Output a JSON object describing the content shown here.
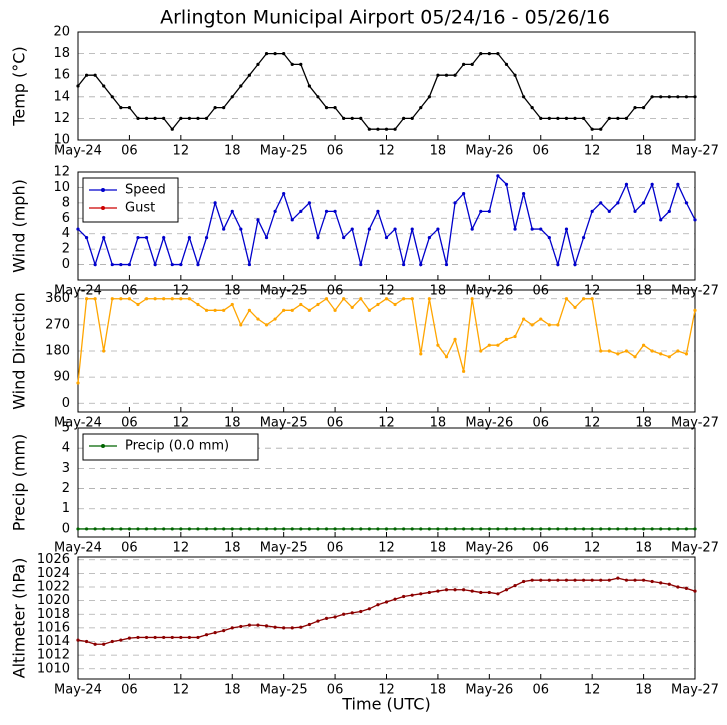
{
  "title": "Arlington Municipal Airport 05/24/16 - 05/26/16",
  "chart_data": [
    {
      "type": "line",
      "ylabel": "Temp (°C)",
      "x": [
        0,
        1,
        2,
        3,
        4,
        5,
        6,
        7,
        8,
        9,
        10,
        11,
        12,
        13,
        14,
        15,
        16,
        17,
        18,
        19,
        20,
        21,
        22,
        23,
        24,
        25,
        26,
        27,
        28,
        29,
        30,
        31,
        32,
        33,
        34,
        35,
        36,
        37,
        38,
        39,
        40,
        41,
        42,
        43,
        44,
        45,
        46,
        47,
        48,
        49,
        50,
        51,
        52,
        53,
        54,
        55,
        56,
        57,
        58,
        59,
        60,
        61,
        62,
        63,
        64,
        65,
        66,
        67,
        68,
        69,
        70,
        71,
        72
      ],
      "xlim": [
        0,
        72
      ],
      "xticks": [
        {
          "value": 0,
          "label": "May-24"
        },
        {
          "value": 6,
          "label": "06"
        },
        {
          "value": 12,
          "label": "12"
        },
        {
          "value": 18,
          "label": "18"
        },
        {
          "value": 24,
          "label": "May-25"
        },
        {
          "value": 30,
          "label": "06"
        },
        {
          "value": 36,
          "label": "12"
        },
        {
          "value": 42,
          "label": "18"
        },
        {
          "value": 48,
          "label": "May-26"
        },
        {
          "value": 54,
          "label": "06"
        },
        {
          "value": 60,
          "label": "12"
        },
        {
          "value": 66,
          "label": "18"
        },
        {
          "value": 72,
          "label": "May-27"
        }
      ],
      "ylim": [
        10,
        20
      ],
      "yticks": [
        10,
        12,
        14,
        16,
        18,
        20
      ],
      "grid": true,
      "series": [
        {
          "name": "Temp",
          "color": "#000000",
          "values": [
            15,
            16,
            16,
            15,
            14,
            13,
            13,
            12,
            12,
            12,
            12,
            11,
            12,
            12,
            12,
            12,
            13,
            13,
            14,
            15,
            16,
            17,
            18,
            18,
            18,
            17,
            17,
            15,
            14,
            13,
            13,
            12,
            12,
            12,
            11,
            11,
            11,
            11,
            12,
            12,
            13,
            14,
            16,
            16,
            16,
            17,
            17,
            18,
            18,
            18,
            17,
            16,
            14,
            13,
            12,
            12,
            12,
            12,
            12,
            12,
            11,
            11,
            12,
            12,
            12,
            13,
            13,
            14,
            14,
            14,
            14,
            14,
            14
          ]
        }
      ]
    },
    {
      "type": "line",
      "ylabel": "Wind (mph)",
      "legend": "upper left",
      "x": [
        0,
        1,
        2,
        3,
        4,
        5,
        6,
        7,
        8,
        9,
        10,
        11,
        12,
        13,
        14,
        15,
        16,
        17,
        18,
        19,
        20,
        21,
        22,
        23,
        24,
        25,
        26,
        27,
        28,
        29,
        30,
        31,
        32,
        33,
        34,
        35,
        36,
        37,
        38,
        39,
        40,
        41,
        42,
        43,
        44,
        45,
        46,
        47,
        48,
        49,
        50,
        51,
        52,
        53,
        54,
        55,
        56,
        57,
        58,
        59,
        60,
        61,
        62,
        63,
        64,
        65,
        66,
        67,
        68,
        69,
        70,
        71,
        72
      ],
      "xlim": [
        0,
        72
      ],
      "xticks": [
        {
          "value": 0,
          "label": "May-24"
        },
        {
          "value": 6,
          "label": "06"
        },
        {
          "value": 12,
          "label": "12"
        },
        {
          "value": 18,
          "label": "18"
        },
        {
          "value": 24,
          "label": "May-25"
        },
        {
          "value": 30,
          "label": "06"
        },
        {
          "value": 36,
          "label": "12"
        },
        {
          "value": 42,
          "label": "18"
        },
        {
          "value": 48,
          "label": "May-26"
        },
        {
          "value": 54,
          "label": "06"
        },
        {
          "value": 60,
          "label": "12"
        },
        {
          "value": 66,
          "label": "18"
        },
        {
          "value": 72,
          "label": "May-27"
        }
      ],
      "ylim": [
        -2,
        12
      ],
      "yticks": [
        0,
        2,
        4,
        6,
        8,
        10,
        12
      ],
      "grid": true,
      "series": [
        {
          "name": "Speed",
          "color": "#0000cc",
          "values": [
            4.6,
            3.5,
            0,
            3.5,
            0,
            0,
            0,
            3.5,
            3.5,
            0,
            3.5,
            0,
            0,
            3.5,
            0,
            3.5,
            8,
            4.6,
            6.9,
            4.6,
            0,
            5.8,
            3.5,
            6.9,
            9.2,
            5.8,
            6.9,
            8,
            3.5,
            6.9,
            6.9,
            3.5,
            4.6,
            0,
            4.6,
            6.9,
            3.5,
            4.6,
            0,
            4.6,
            0,
            3.5,
            4.6,
            0,
            8,
            9.2,
            4.6,
            6.9,
            6.9,
            11.5,
            10.4,
            4.6,
            9.2,
            4.6,
            4.6,
            3.5,
            0,
            4.6,
            0,
            3.5,
            6.9,
            8,
            6.9,
            8,
            10.4,
            6.9,
            8,
            10.4,
            5.8,
            6.9,
            10.4,
            8,
            5.8
          ]
        },
        {
          "name": "Gust",
          "color": "#cc0000",
          "values": [
            null,
            null,
            null,
            null,
            null,
            null,
            null,
            null,
            null,
            null,
            null,
            null,
            null,
            null,
            null,
            null,
            null,
            null,
            null,
            null,
            null,
            null,
            null,
            null,
            null,
            null,
            null,
            null,
            null,
            null,
            null,
            null,
            null,
            null,
            null,
            null,
            null,
            null,
            null,
            null,
            null,
            null,
            null,
            null,
            null,
            null,
            null,
            null,
            null,
            null,
            null,
            null,
            null,
            null,
            null,
            null,
            null,
            null,
            null,
            null,
            null,
            null,
            null,
            null,
            null,
            null,
            null,
            null,
            null,
            null,
            null,
            null,
            null
          ]
        }
      ]
    },
    {
      "type": "line",
      "ylabel": "Wind Direction",
      "x": [
        0,
        1,
        2,
        3,
        4,
        5,
        6,
        7,
        8,
        9,
        10,
        11,
        12,
        13,
        14,
        15,
        16,
        17,
        18,
        19,
        20,
        21,
        22,
        23,
        24,
        25,
        26,
        27,
        28,
        29,
        30,
        31,
        32,
        33,
        34,
        35,
        36,
        37,
        38,
        39,
        40,
        41,
        42,
        43,
        44,
        45,
        46,
        47,
        48,
        49,
        50,
        51,
        52,
        53,
        54,
        55,
        56,
        57,
        58,
        59,
        60,
        61,
        62,
        63,
        64,
        65,
        66,
        67,
        68,
        69,
        70,
        71,
        72
      ],
      "xlim": [
        0,
        72
      ],
      "xticks": [
        {
          "value": 0,
          "label": "May-24"
        },
        {
          "value": 6,
          "label": "06"
        },
        {
          "value": 12,
          "label": "12"
        },
        {
          "value": 18,
          "label": "18"
        },
        {
          "value": 24,
          "label": "May-25"
        },
        {
          "value": 30,
          "label": "06"
        },
        {
          "value": 36,
          "label": "12"
        },
        {
          "value": 42,
          "label": "18"
        },
        {
          "value": 48,
          "label": "May-26"
        },
        {
          "value": 54,
          "label": "06"
        },
        {
          "value": 60,
          "label": "12"
        },
        {
          "value": 66,
          "label": "18"
        },
        {
          "value": 72,
          "label": "May-27"
        }
      ],
      "ylim": [
        -30,
        390
      ],
      "yticks": [
        0,
        90,
        180,
        270,
        360
      ],
      "grid": true,
      "series": [
        {
          "name": "Wind Direction",
          "color": "#ffa500",
          "values": [
            70,
            360,
            360,
            180,
            360,
            360,
            360,
            340,
            360,
            360,
            360,
            360,
            360,
            360,
            340,
            320,
            320,
            320,
            340,
            270,
            320,
            290,
            270,
            290,
            320,
            320,
            340,
            320,
            340,
            360,
            320,
            360,
            330,
            360,
            320,
            340,
            360,
            340,
            360,
            360,
            170,
            360,
            200,
            160,
            220,
            110,
            360,
            180,
            200,
            200,
            220,
            230,
            290,
            270,
            290,
            270,
            270,
            360,
            330,
            360,
            360,
            180,
            180,
            170,
            180,
            160,
            200,
            180,
            170,
            160,
            180,
            170,
            320
          ]
        }
      ]
    },
    {
      "type": "line",
      "ylabel": "Precip (mm)",
      "legend": "upper left",
      "x": [
        0,
        1,
        2,
        3,
        4,
        5,
        6,
        7,
        8,
        9,
        10,
        11,
        12,
        13,
        14,
        15,
        16,
        17,
        18,
        19,
        20,
        21,
        22,
        23,
        24,
        25,
        26,
        27,
        28,
        29,
        30,
        31,
        32,
        33,
        34,
        35,
        36,
        37,
        38,
        39,
        40,
        41,
        42,
        43,
        44,
        45,
        46,
        47,
        48,
        49,
        50,
        51,
        52,
        53,
        54,
        55,
        56,
        57,
        58,
        59,
        60,
        61,
        62,
        63,
        64,
        65,
        66,
        67,
        68,
        69,
        70,
        71,
        72
      ],
      "xlim": [
        0,
        72
      ],
      "xticks": [
        {
          "value": 0,
          "label": "May-24"
        },
        {
          "value": 6,
          "label": "06"
        },
        {
          "value": 12,
          "label": "12"
        },
        {
          "value": 18,
          "label": "18"
        },
        {
          "value": 24,
          "label": "May-25"
        },
        {
          "value": 30,
          "label": "06"
        },
        {
          "value": 36,
          "label": "12"
        },
        {
          "value": 42,
          "label": "18"
        },
        {
          "value": 48,
          "label": "May-26"
        },
        {
          "value": 54,
          "label": "06"
        },
        {
          "value": 60,
          "label": "12"
        },
        {
          "value": 66,
          "label": "18"
        },
        {
          "value": 72,
          "label": "May-27"
        }
      ],
      "ylim": [
        -0.4,
        5
      ],
      "yticks": [
        0,
        1,
        2,
        3,
        4,
        5
      ],
      "grid": true,
      "series": [
        {
          "name": "Precip (0.0 mm)",
          "color": "#006400",
          "values": [
            0,
            0,
            0,
            0,
            0,
            0,
            0,
            0,
            0,
            0,
            0,
            0,
            0,
            0,
            0,
            0,
            0,
            0,
            0,
            0,
            0,
            0,
            0,
            0,
            0,
            0,
            0,
            0,
            0,
            0,
            0,
            0,
            0,
            0,
            0,
            0,
            0,
            0,
            0,
            0,
            0,
            0,
            0,
            0,
            0,
            0,
            0,
            0,
            0,
            0,
            0,
            0,
            0,
            0,
            0,
            0,
            0,
            0,
            0,
            0,
            0,
            0,
            0,
            0,
            0,
            0,
            0,
            0,
            0,
            0,
            0,
            0,
            0
          ]
        }
      ]
    },
    {
      "type": "line",
      "ylabel": "Altimeter (hPa)",
      "xlabel": "Time (UTC)",
      "x": [
        0,
        1,
        2,
        3,
        4,
        5,
        6,
        7,
        8,
        9,
        10,
        11,
        12,
        13,
        14,
        15,
        16,
        17,
        18,
        19,
        20,
        21,
        22,
        23,
        24,
        25,
        26,
        27,
        28,
        29,
        30,
        31,
        32,
        33,
        34,
        35,
        36,
        37,
        38,
        39,
        40,
        41,
        42,
        43,
        44,
        45,
        46,
        47,
        48,
        49,
        50,
        51,
        52,
        53,
        54,
        55,
        56,
        57,
        58,
        59,
        60,
        61,
        62,
        63,
        64,
        65,
        66,
        67,
        68,
        69,
        70,
        71,
        72
      ],
      "xlim": [
        0,
        72
      ],
      "xticks": [
        {
          "value": 0,
          "label": "May-24"
        },
        {
          "value": 6,
          "label": "06"
        },
        {
          "value": 12,
          "label": "12"
        },
        {
          "value": 18,
          "label": "18"
        },
        {
          "value": 24,
          "label": "May-25"
        },
        {
          "value": 30,
          "label": "06"
        },
        {
          "value": 36,
          "label": "12"
        },
        {
          "value": 42,
          "label": "18"
        },
        {
          "value": 48,
          "label": "May-26"
        },
        {
          "value": 54,
          "label": "06"
        },
        {
          "value": 60,
          "label": "12"
        },
        {
          "value": 66,
          "label": "18"
        },
        {
          "value": 72,
          "label": "May-27"
        }
      ],
      "ylim": [
        1008.5,
        1026.4
      ],
      "yticks": [
        1010,
        1012,
        1014,
        1016,
        1018,
        1020,
        1022,
        1024,
        1026
      ],
      "grid": true,
      "series": [
        {
          "name": "Altimeter",
          "color": "#8b0000",
          "values": [
            1014.2,
            1014,
            1013.6,
            1013.6,
            1014,
            1014.2,
            1014.5,
            1014.6,
            1014.6,
            1014.6,
            1014.6,
            1014.6,
            1014.6,
            1014.6,
            1014.6,
            1015,
            1015.3,
            1015.6,
            1016,
            1016.2,
            1016.4,
            1016.4,
            1016.3,
            1016.1,
            1016,
            1016,
            1016.1,
            1016.5,
            1017,
            1017.4,
            1017.6,
            1018,
            1018.2,
            1018.4,
            1018.8,
            1019.4,
            1019.8,
            1020.2,
            1020.6,
            1020.8,
            1021,
            1021.2,
            1021.4,
            1021.6,
            1021.6,
            1021.6,
            1021.4,
            1021.2,
            1021.2,
            1021,
            1021.6,
            1022.2,
            1022.8,
            1023,
            1023,
            1023,
            1023,
            1023,
            1023,
            1023,
            1023,
            1023,
            1023,
            1023.3,
            1023,
            1023,
            1023,
            1022.8,
            1022.6,
            1022.4,
            1022,
            1021.8,
            1021.4
          ]
        }
      ]
    }
  ]
}
